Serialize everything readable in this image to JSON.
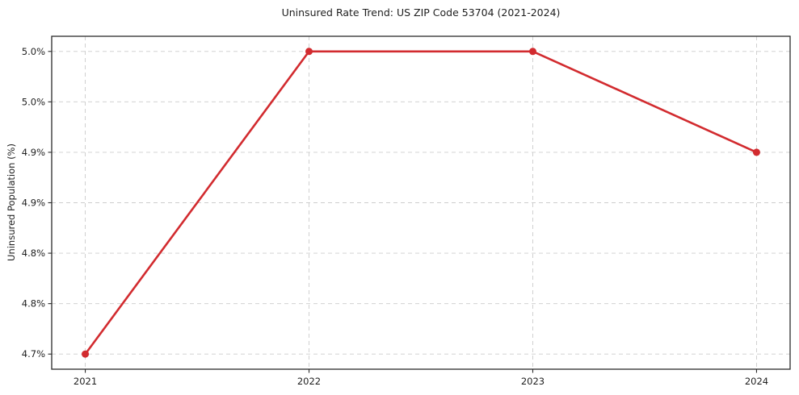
{
  "figure": {
    "background": "#ffffff"
  },
  "chart_data": {
    "type": "line",
    "title": "Uninsured Rate Trend: US ZIP Code 53704 (2021-2024)",
    "xlabel": "",
    "ylabel": "Uninsured Population (%)",
    "x": [
      2021,
      2022,
      2023,
      2024
    ],
    "series": [
      {
        "name": "Uninsured Population (%)",
        "values": [
          4.7,
          5.0,
          5.0,
          4.9
        ],
        "marker": "circle"
      }
    ],
    "xlim": [
      2020.85,
      2024.15
    ],
    "ylim": [
      4.685,
      5.015
    ],
    "x_ticks": [
      {
        "value": 2021,
        "label": "2021"
      },
      {
        "value": 2022,
        "label": "2022"
      },
      {
        "value": 2023,
        "label": "2023"
      },
      {
        "value": 2024,
        "label": "2024"
      }
    ],
    "y_ticks": [
      {
        "value": 4.7,
        "label": "4.7%"
      },
      {
        "value": 4.75,
        "label": "4.8%"
      },
      {
        "value": 4.8,
        "label": "4.8%"
      },
      {
        "value": 4.85,
        "label": "4.9%"
      },
      {
        "value": 4.9,
        "label": "4.9%"
      },
      {
        "value": 4.95,
        "label": "5.0%"
      },
      {
        "value": 5.0,
        "label": "5.0%"
      }
    ],
    "grid": true,
    "grid_style": "dashed",
    "legend_position": "none",
    "colors": {
      "line": "#d22b2f",
      "marker": "#d22b2f",
      "grid": "#cccccc",
      "spine": "#2b2b2b",
      "text": "#1f1f1f",
      "background": "#ffffff"
    }
  }
}
